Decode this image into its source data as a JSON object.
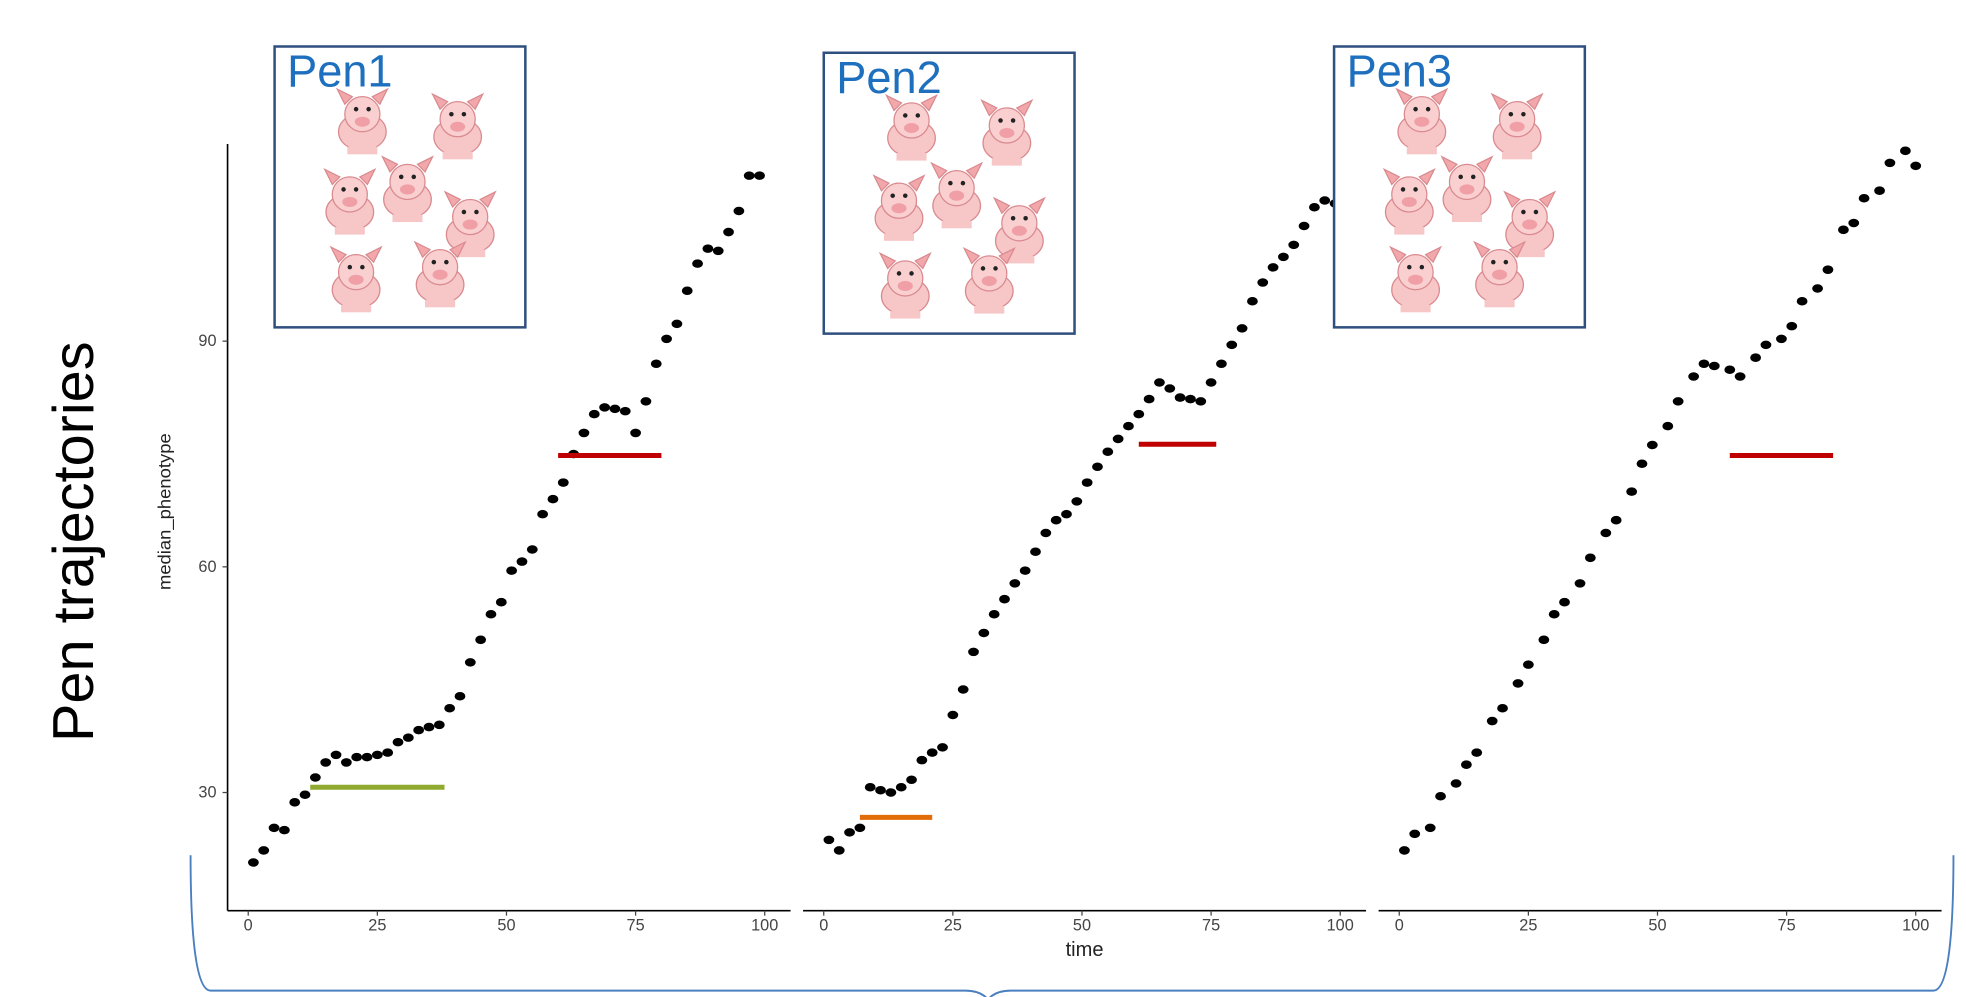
{
  "title": "Pen trajectories",
  "chart_data": [
    {
      "type": "scatter",
      "label": "Pen1",
      "ylabel": "median_phenotype",
      "ylim": [
        14.3,
        116.2
      ],
      "yticks": [
        30,
        60,
        90
      ],
      "xlim": [
        -4,
        105
      ],
      "xticks": [
        0,
        25,
        50,
        75,
        100
      ],
      "color": "#000000",
      "x": [
        1,
        3,
        5,
        7,
        9,
        11,
        13,
        15,
        17,
        19,
        21,
        23,
        25,
        27,
        29,
        31,
        33,
        35,
        37,
        39,
        41,
        43,
        45,
        47,
        49,
        51,
        53,
        55,
        57,
        59,
        61,
        63,
        65,
        67,
        69,
        71,
        73,
        75,
        77,
        79,
        81,
        83,
        85,
        87,
        89,
        91,
        93,
        95,
        97,
        99
      ],
      "y": [
        20.7,
        22.3,
        25.3,
        25,
        28.7,
        29.7,
        32,
        34,
        35,
        34,
        34.7,
        34.7,
        35,
        35.3,
        36.7,
        37.3,
        38.3,
        38.7,
        39,
        41.2,
        42.8,
        47.3,
        50.3,
        53.7,
        55.3,
        59.5,
        60.7,
        62.3,
        67,
        69,
        71.2,
        75,
        77.8,
        80.3,
        81.2,
        81,
        80.7,
        77.8,
        82,
        87,
        90.3,
        92.3,
        96.7,
        100.3,
        102.3,
        102,
        104.5,
        107.3,
        112,
        112
      ],
      "lines": [
        {
          "x": [
            12,
            38
          ],
          "y": 30.7,
          "color": "#8faa2e"
        },
        {
          "x": [
            60,
            80
          ],
          "y": 74.8,
          "color": "#c00000"
        }
      ]
    },
    {
      "type": "scatter",
      "label": "Pen2",
      "xlabel": "time",
      "xlim": [
        -4,
        105
      ],
      "xticks": [
        0,
        25,
        50,
        75,
        100
      ],
      "color": "#000000",
      "x": [
        1,
        3,
        5,
        7,
        9,
        11,
        13,
        15,
        17,
        19,
        21,
        23,
        25,
        27,
        29,
        31,
        33,
        35,
        37,
        39,
        41,
        43,
        45,
        47,
        49,
        51,
        53,
        55,
        57,
        59,
        61,
        63,
        65,
        67,
        69,
        71,
        73,
        75,
        77,
        79,
        81,
        83,
        85,
        87,
        89,
        91,
        93,
        95,
        97,
        99
      ],
      "y": [
        23.7,
        22.3,
        24.7,
        25.3,
        30.7,
        30.3,
        30,
        30.7,
        31.7,
        34.3,
        35.3,
        36,
        40.3,
        43.7,
        48.7,
        51.2,
        53.7,
        55.7,
        57.8,
        59.5,
        62,
        64.5,
        66.2,
        67,
        68.7,
        71.2,
        73.3,
        75.3,
        77,
        78.7,
        80.3,
        82.3,
        84.5,
        83.7,
        82.5,
        82.3,
        82,
        84.5,
        87,
        89.5,
        91.7,
        95.3,
        97.8,
        99.8,
        101.2,
        102.8,
        105.3,
        107.8,
        108.7,
        108.3
      ],
      "lines": [
        {
          "x": [
            7,
            21
          ],
          "y": 26.7,
          "color": "#e36c0a"
        },
        {
          "x": [
            61,
            76
          ],
          "y": 76.3,
          "color": "#c00000"
        }
      ]
    },
    {
      "type": "scatter",
      "label": "Pen3",
      "xlim": [
        -4,
        105
      ],
      "xticks": [
        0,
        25,
        50,
        75,
        100
      ],
      "color": "#000000",
      "x": [
        1,
        3,
        6,
        8,
        11,
        13,
        15,
        18,
        20,
        23,
        25,
        28,
        30,
        32,
        35,
        37,
        40,
        42,
        45,
        47,
        49,
        52,
        54,
        57,
        59,
        61,
        64,
        66,
        69,
        71,
        74,
        76,
        78,
        81,
        83,
        86,
        88,
        90,
        93,
        95,
        98,
        100
      ],
      "y": [
        22.3,
        24.5,
        25.3,
        29.5,
        31.2,
        33.7,
        35.3,
        39.5,
        41.2,
        44.5,
        47,
        50.3,
        53.7,
        55.3,
        57.8,
        61.2,
        64.5,
        66.2,
        70,
        73.7,
        76.2,
        78.7,
        82,
        85.3,
        87,
        86.7,
        86.2,
        85.3,
        87.8,
        89.5,
        90.3,
        92,
        95.3,
        97,
        99.5,
        104.8,
        105.7,
        109,
        110,
        113.7,
        115.3,
        113.3
      ],
      "lines": [
        {
          "x": [
            64,
            84
          ],
          "y": 74.8,
          "color": "#c00000"
        }
      ]
    }
  ]
}
